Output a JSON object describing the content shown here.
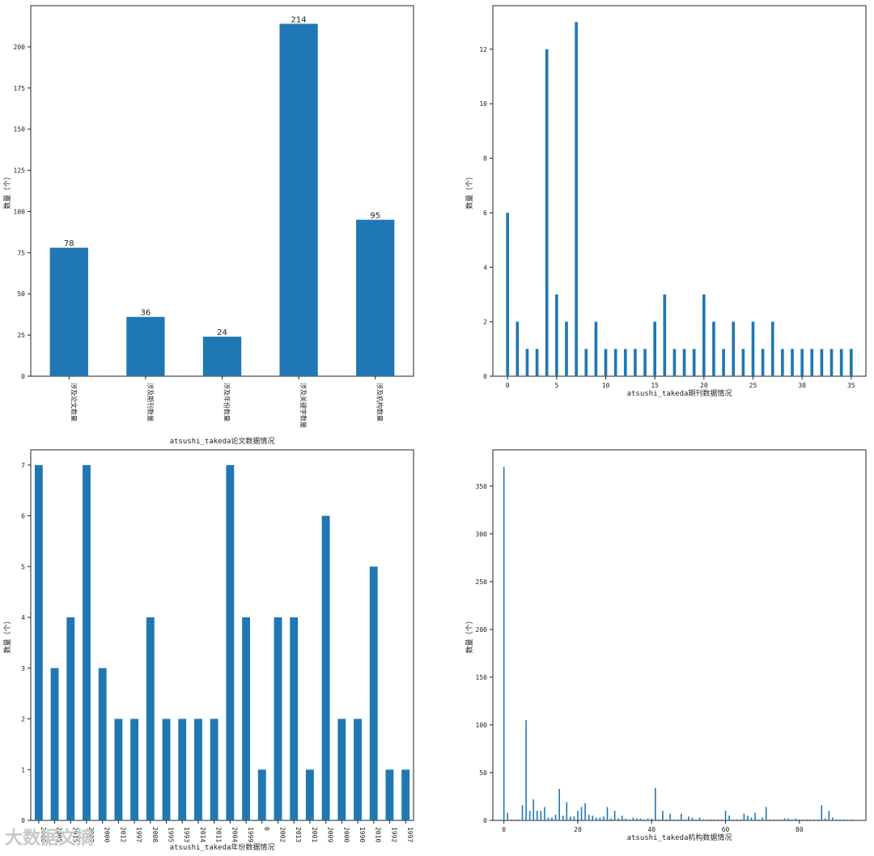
{
  "chart_data": [
    {
      "type": "bar",
      "title": "",
      "xlabel": "atsushi_takeda论文数据情况",
      "ylabel": "数量（个）",
      "categories": [
        "涉及论文数量",
        "涉及期刊数量",
        "涉及年份数量",
        "涉及关键字数量",
        "涉及机构数量"
      ],
      "values": [
        78,
        36,
        24,
        214,
        95
      ],
      "data_labels": [
        "78",
        "36",
        "24",
        "214",
        "95"
      ],
      "ylim": [
        0,
        225
      ],
      "yticks": [
        0,
        25,
        50,
        75,
        100,
        125,
        150,
        175,
        200
      ],
      "grid": false,
      "color": "#1f77b4"
    },
    {
      "type": "bar",
      "title": "",
      "xlabel": "atsushi_takeda期刊数据情况",
      "ylabel": "数量（个）",
      "x": [
        0,
        1,
        2,
        3,
        4,
        5,
        6,
        7,
        8,
        9,
        10,
        11,
        12,
        13,
        14,
        15,
        16,
        17,
        18,
        19,
        20,
        21,
        22,
        23,
        24,
        25,
        26,
        27,
        28,
        29,
        30,
        31,
        32,
        33,
        34,
        35
      ],
      "values": [
        6,
        2,
        1,
        1,
        12,
        3,
        2,
        13,
        1,
        2,
        1,
        1,
        1,
        1,
        1,
        2,
        3,
        1,
        1,
        1,
        3,
        2,
        1,
        2,
        1,
        2,
        1,
        2,
        1,
        1,
        1,
        1,
        1,
        1,
        1,
        1
      ],
      "xlim": [
        -1.5,
        36.5
      ],
      "ylim": [
        0,
        13.6
      ],
      "xticks": [
        0,
        5,
        10,
        15,
        20,
        25,
        30,
        35
      ],
      "yticks": [
        0,
        2,
        4,
        6,
        8,
        10,
        12
      ],
      "grid": false,
      "color": "#1f77b4"
    },
    {
      "type": "bar",
      "title": "",
      "xlabel": "atsushi_takeda年份数据情况",
      "ylabel": "数量（个）",
      "categories": [
        "2006",
        "2005",
        "2015",
        "2007",
        "2000",
        "2012",
        "1997",
        "2008",
        "1995",
        "1993",
        "2014",
        "2011",
        "2004",
        "1999",
        "0",
        "2002",
        "2013",
        "2001",
        "2009",
        "2000",
        "1990",
        "2010",
        "1992",
        "1997"
      ],
      "values": [
        7,
        3,
        4,
        7,
        3,
        2,
        2,
        4,
        2,
        2,
        2,
        2,
        7,
        4,
        1,
        4,
        4,
        1,
        6,
        2,
        2,
        5,
        1,
        1
      ],
      "ylim": [
        0,
        7.3
      ],
      "yticks": [
        0,
        1,
        2,
        3,
        4,
        5,
        6,
        7
      ],
      "grid": false,
      "color": "#1f77b4"
    },
    {
      "type": "bar",
      "title": "",
      "xlabel": "atsushi_takeda机构数据情况",
      "ylabel": "数量（个）",
      "x": [
        0,
        1,
        2,
        3,
        4,
        5,
        6,
        7,
        8,
        9,
        10,
        11,
        12,
        13,
        14,
        15,
        16,
        17,
        18,
        19,
        20,
        21,
        22,
        23,
        24,
        25,
        26,
        27,
        28,
        29,
        30,
        31,
        32,
        33,
        34,
        35,
        36,
        37,
        38,
        39,
        40,
        41,
        42,
        43,
        44,
        45,
        46,
        47,
        48,
        49,
        50,
        51,
        52,
        53,
        54,
        55,
        56,
        57,
        58,
        59,
        60,
        61,
        62,
        63,
        64,
        65,
        66,
        67,
        68,
        69,
        70,
        71,
        72,
        73,
        74,
        75,
        76,
        77,
        78,
        79,
        80,
        81,
        82,
        83,
        84,
        85,
        86,
        87,
        88,
        89,
        90,
        91,
        92,
        93,
        94
      ],
      "values": [
        370,
        8,
        1,
        1,
        1,
        16,
        105,
        10,
        22,
        10,
        10,
        14,
        3,
        3,
        6,
        33,
        5,
        19,
        4,
        4,
        10,
        14,
        18,
        6,
        5,
        3,
        3,
        4,
        14,
        2,
        10,
        2,
        5,
        2,
        1,
        3,
        2,
        2,
        1,
        2,
        2,
        34,
        1,
        10,
        1,
        7,
        1,
        1,
        7,
        1,
        4,
        3,
        1,
        3,
        1,
        1,
        1,
        1,
        1,
        1,
        10,
        5,
        1,
        1,
        1,
        7,
        5,
        3,
        8,
        1,
        3,
        14,
        1,
        1,
        1,
        1,
        2,
        2,
        1,
        2,
        1,
        1,
        1,
        1,
        1,
        1,
        16,
        2,
        10,
        3,
        1,
        1,
        1,
        1,
        1
      ],
      "xlim": [
        -3,
        98
      ],
      "ylim": [
        0,
        388
      ],
      "xticks": [
        0,
        20,
        40,
        60,
        80
      ],
      "yticks": [
        0,
        50,
        100,
        150,
        200,
        250,
        300,
        350
      ],
      "grid": false,
      "color": "#1f77b4"
    }
  ],
  "watermark": "大数据文摘"
}
